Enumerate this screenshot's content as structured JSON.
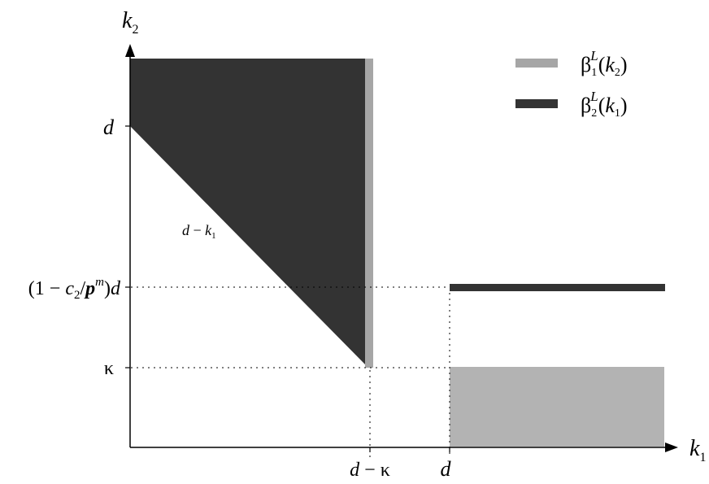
{
  "axes": {
    "x_label": "k",
    "x_label_sub": "1",
    "y_label": "k",
    "y_label_sub": "2"
  },
  "y_ticks": {
    "d": "d",
    "threshold": {
      "open": "(1 − ",
      "c": "c",
      "c_sub": "2",
      "slash": "/",
      "p": "p",
      "p_sup": "m",
      "close": ")",
      "d": "d"
    },
    "kappa": "κ"
  },
  "x_ticks": {
    "d_minus_kappa": {
      "d": "d",
      "rest": " − κ"
    },
    "d": "d"
  },
  "diagonal_label": {
    "d": "d",
    "minus": " − ",
    "k": "k",
    "k_sub": "1"
  },
  "legend": [
    {
      "beta": "β",
      "sub": "1",
      "sup": "L",
      "open": "(",
      "arg": "k",
      "arg_sub": "2",
      "close": ")",
      "color": "#a6a6a6"
    },
    {
      "beta": "β",
      "sub": "2",
      "sup": "L",
      "open": "(",
      "arg": "k",
      "arg_sub": "1",
      "close": ")",
      "color": "#333333"
    }
  ],
  "colors": {
    "dark_region": "#333333",
    "light_region": "#b3b3b3",
    "light_bar": "#a6a6a6",
    "axis": "#000000"
  }
}
